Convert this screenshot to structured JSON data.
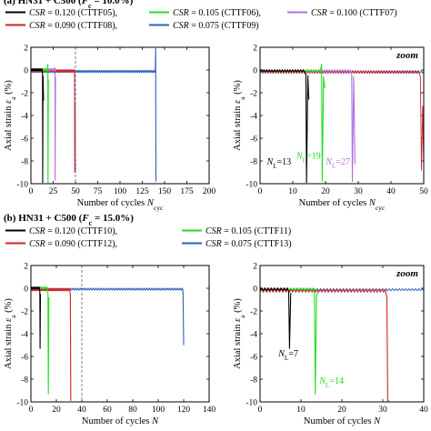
{
  "colors": {
    "black": "#000000",
    "green": "#22dd22",
    "purple": "#b070e0",
    "red": "#d1202a",
    "blue": "#2f5fc0",
    "dashed": "#708090"
  },
  "panel_a": {
    "title": "(a) HN31 + C500 (F_c = 10.0%)",
    "legend": [
      {
        "label": "CSR = 0.120 (CTTF05),",
        "color": "#000000"
      },
      {
        "label": "CSR = 0.105 (CTTF06),",
        "color": "#22dd22"
      },
      {
        "label": "CSR = 0.100 (CTTF07)",
        "color": "#b070e0"
      },
      {
        "label": "CSR = 0.090 (CTTF08),",
        "color": "#d1202a"
      },
      {
        "label": "CSR = 0.075 (CTTF09)",
        "color": "#2f5fc0"
      }
    ]
  },
  "panel_b": {
    "title": "(b) HN31 + C500 (F_c = 15.0%)",
    "legend": [
      {
        "label": "CSR = 0.120 (CTTF10),",
        "color": "#000000"
      },
      {
        "label": "CSR = 0.105 (CTTF11)",
        "color": "#22dd22"
      },
      {
        "label": "CSR = 0.090 (CTTF12),",
        "color": "#d1202a"
      },
      {
        "label": "CSR = 0.075 (CTTF13)",
        "color": "#2f5fc0"
      }
    ]
  },
  "chart_data": [
    {
      "id": "a-left",
      "type": "line",
      "xlabel": "Number of cycles N_cyc",
      "ylabel": "Axial strain ε_a (%)",
      "xlim": [
        0,
        200
      ],
      "ylim": [
        -10,
        2
      ],
      "xticks": [
        0,
        25,
        50,
        75,
        100,
        125,
        150,
        175,
        200
      ],
      "yticks": [
        2,
        0,
        -2,
        -4,
        -6,
        -8,
        -10
      ],
      "dashed_x": 50,
      "series": [
        {
          "name": "CTTF05",
          "color": "#000000",
          "N_L": 13,
          "x": [
            0,
            13,
            13,
            13.5,
            14
          ],
          "y": [
            0,
            -0.3,
            -9.9,
            -0.5,
            -0.5
          ]
        },
        {
          "name": "CTTF06",
          "color": "#22dd22",
          "N_L": 19,
          "x": [
            0,
            19,
            19,
            19.5,
            20
          ],
          "y": [
            0,
            0.5,
            -9.9,
            -0.8,
            -0.8
          ]
        },
        {
          "name": "CTTF07",
          "color": "#b070e0",
          "N_L": 27,
          "x": [
            0,
            27,
            27,
            27.5,
            28
          ],
          "y": [
            0,
            0.2,
            -9.7,
            -0.5,
            -0.5
          ]
        },
        {
          "name": "CTTF08",
          "color": "#d1202a",
          "N_L": 49,
          "x": [
            0,
            49,
            49,
            49.5,
            50
          ],
          "y": [
            0,
            -0.2,
            -9.0,
            -3.0,
            -8.8
          ]
        },
        {
          "name": "CTTF09",
          "color": "#2f5fc0",
          "N_L": 140,
          "x": [
            0,
            140,
            140,
            141
          ],
          "y": [
            0,
            1.9,
            -9.8,
            -9.8
          ]
        }
      ]
    },
    {
      "id": "a-right",
      "type": "line",
      "annotation": "zoom",
      "xlabel": "Number of cycles N_cyc",
      "ylabel": "Axial strain ε_a (%)",
      "xlim": [
        0,
        50
      ],
      "ylim": [
        -10,
        2
      ],
      "xticks": [
        0,
        10,
        20,
        30,
        40,
        50
      ],
      "yticks": [
        2,
        0,
        -2,
        -4,
        -6,
        -8,
        -10
      ],
      "labels": [
        {
          "text": "N_L=13",
          "x": 9.5,
          "y": -8.3,
          "color": "#000000"
        },
        {
          "text": "N_L=19",
          "x": 18.5,
          "y": -7.8,
          "color": "#22dd22"
        },
        {
          "text": "N_L=27",
          "x": 27.5,
          "y": -8.3,
          "color": "#b070e0"
        }
      ]
    },
    {
      "id": "b-left",
      "type": "line",
      "xlabel": "Number of cycles N",
      "ylabel": "Axial strain ε_a (%)",
      "xlim": [
        0,
        140
      ],
      "ylim": [
        -10,
        2
      ],
      "xticks": [
        0,
        20,
        40,
        60,
        80,
        100,
        120,
        140
      ],
      "yticks": [
        2,
        0,
        -2,
        -4,
        -6,
        -8,
        -10
      ],
      "dashed_x": 40,
      "series": [
        {
          "name": "CTTF10",
          "color": "#000000",
          "N_L": 7,
          "x": [
            0,
            7,
            7,
            7.5
          ],
          "y": [
            0,
            -0.3,
            -5.3,
            -0.5
          ]
        },
        {
          "name": "CTTF11",
          "color": "#22dd22",
          "N_L": 14,
          "x": [
            0,
            13,
            13.5,
            14
          ],
          "y": [
            0,
            -0.5,
            -9.3,
            -0.8
          ]
        },
        {
          "name": "CTTF12",
          "color": "#d1202a",
          "N_L": 31,
          "x": [
            0,
            31,
            31,
            31.5
          ],
          "y": [
            0,
            -0.6,
            -9.9,
            -9.9
          ]
        },
        {
          "name": "CTTF13",
          "color": "#2f5fc0",
          "N_L": 119,
          "x": [
            0,
            119,
            120,
            120
          ],
          "y": [
            0,
            -0.1,
            -0.3,
            -5.0
          ]
        }
      ]
    },
    {
      "id": "b-right",
      "type": "line",
      "annotation": "zoom",
      "xlabel": "Number of cycles N",
      "ylabel": "Axial strain ε_a (%)",
      "xlim": [
        0,
        40
      ],
      "ylim": [
        -10,
        2
      ],
      "xticks": [
        0,
        10,
        20,
        30,
        40
      ],
      "yticks": [
        2,
        0,
        -2,
        -4,
        -6,
        -8,
        -10
      ],
      "labels": [
        {
          "text": "N_L=7",
          "x": 4.5,
          "y": -6.0,
          "color": "#000000"
        },
        {
          "text": "N_L=14",
          "x": 14.5,
          "y": -8.4,
          "color": "#22dd22"
        }
      ]
    }
  ]
}
